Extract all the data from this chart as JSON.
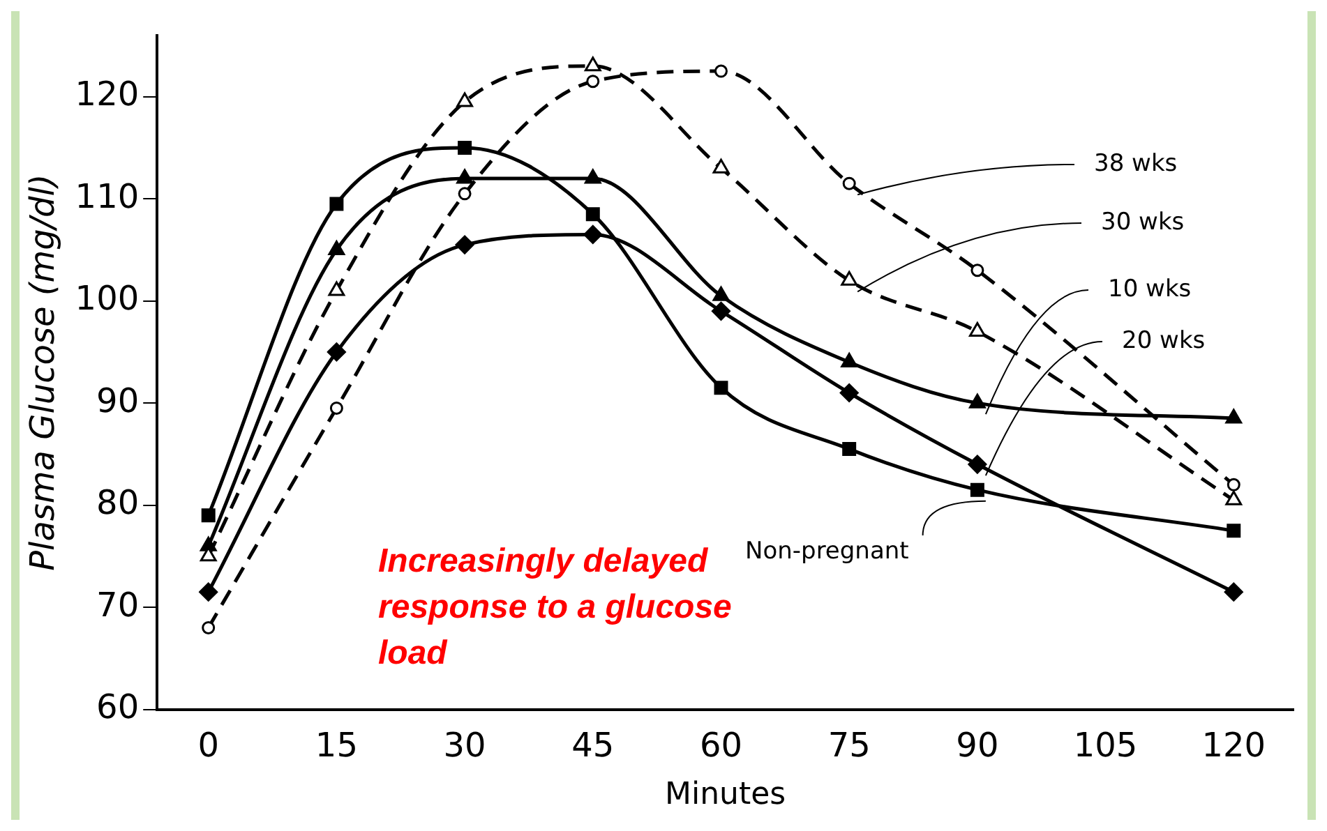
{
  "chart_data": {
    "type": "line",
    "xlabel": "Minutes",
    "ylabel": "Plasma Glucose (mg/dl)",
    "x": [
      0,
      15,
      30,
      45,
      60,
      75,
      90,
      120
    ],
    "xlim": [
      -6,
      127
    ],
    "xticks": [
      0,
      15,
      30,
      45,
      60,
      75,
      90,
      105,
      120
    ],
    "ylim": [
      60,
      126
    ],
    "yticks": [
      60,
      70,
      80,
      90,
      100,
      110,
      120
    ],
    "grid": false,
    "legend": false,
    "series": [
      {
        "name": "38 wks",
        "color": "#000000",
        "marker": "circle",
        "line_style": "dashed",
        "values": [
          68,
          89.5,
          110.5,
          121.5,
          122.5,
          111.5,
          103,
          82
        ]
      },
      {
        "name": "30 wks",
        "color": "#000000",
        "marker": "triangle",
        "line_style": "dashed",
        "values": [
          75,
          101,
          119.5,
          123,
          113,
          102,
          97,
          80.5
        ]
      },
      {
        "name": "10 wks",
        "color": "#000000",
        "marker": "triangle",
        "line_style": "solid",
        "values": [
          76,
          105,
          112,
          112,
          100.5,
          94,
          90,
          88.5
        ]
      },
      {
        "name": "20 wks",
        "color": "#000000",
        "marker": "diamond",
        "line_style": "solid",
        "values": [
          71.5,
          95,
          105.5,
          106.5,
          99,
          91,
          84,
          71.5
        ]
      },
      {
        "name": "Non-pregnant",
        "color": "#000000",
        "marker": "square",
        "line_style": "solid",
        "values": [
          79,
          109.5,
          115,
          108.5,
          91.5,
          85.5,
          81.5,
          77.5
        ]
      }
    ],
    "annotations": [
      "Increasingly delayed response to a glucose load"
    ]
  }
}
